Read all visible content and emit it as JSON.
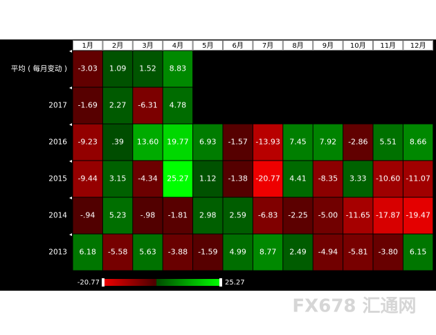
{
  "chart_data": {
    "type": "heatmap",
    "categories": [
      "1月",
      "2月",
      "3月",
      "4月",
      "5月",
      "6月",
      "7月",
      "8月",
      "9月",
      "10月",
      "11月",
      "12月"
    ],
    "series": [
      {
        "name": "平均 ( 每月变动 )",
        "values": [
          -3.03,
          1.09,
          1.52,
          8.83,
          null,
          null,
          null,
          null,
          null,
          null,
          null,
          null
        ],
        "value_labels": [
          "-3.03",
          "1.09",
          "1.52",
          "8.83",
          null,
          null,
          null,
          null,
          null,
          null,
          null,
          null
        ]
      },
      {
        "name": "2017",
        "values": [
          -1.69,
          2.27,
          -6.31,
          4.78,
          null,
          null,
          null,
          null,
          null,
          null,
          null,
          null
        ],
        "value_labels": [
          "-1.69",
          "2.27",
          "-6.31",
          "4.78",
          null,
          null,
          null,
          null,
          null,
          null,
          null,
          null
        ]
      },
      {
        "name": "2016",
        "values": [
          -9.23,
          0.39,
          13.6,
          19.77,
          6.93,
          -1.57,
          -13.93,
          7.45,
          7.92,
          -2.86,
          5.51,
          8.66
        ],
        "value_labels": [
          "-9.23",
          ".39",
          "13.60",
          "19.77",
          "6.93",
          "-1.57",
          "-13.93",
          "7.45",
          "7.92",
          "-2.86",
          "5.51",
          "8.66"
        ]
      },
      {
        "name": "2015",
        "values": [
          -9.44,
          3.15,
          -4.34,
          25.27,
          1.12,
          -1.38,
          -20.77,
          4.41,
          -8.35,
          3.33,
          -10.6,
          -11.07
        ],
        "value_labels": [
          "-9.44",
          "3.15",
          "-4.34",
          "25.27",
          "1.12",
          "-1.38",
          "-20.77",
          "4.41",
          "-8.35",
          "3.33",
          "-10.60",
          "-11.07"
        ]
      },
      {
        "name": "2014",
        "values": [
          -0.94,
          5.23,
          -0.98,
          -1.81,
          2.98,
          2.59,
          -6.83,
          -2.25,
          -5.0,
          -11.65,
          -17.87,
          -19.47
        ],
        "value_labels": [
          "-.94",
          "5.23",
          "-.98",
          "-1.81",
          "2.98",
          "2.59",
          "-6.83",
          "-2.25",
          "-5.00",
          "-11.65",
          "-17.87",
          "-19.47"
        ]
      },
      {
        "name": "2013",
        "values": [
          6.18,
          -5.58,
          5.63,
          -3.88,
          -1.59,
          4.99,
          8.77,
          2.49,
          -4.94,
          -5.81,
          -3.8,
          6.15
        ],
        "value_labels": [
          "6.18",
          "-5.58",
          "5.63",
          "-3.88",
          "-1.59",
          "4.99",
          "8.77",
          "2.49",
          "-4.94",
          "-5.81",
          "-3.80",
          "6.15"
        ]
      }
    ],
    "colorbar": {
      "min": -20.77,
      "max": 25.27
    },
    "colors": {
      "low": "#ee0000",
      "neg_zero": "#4a0000",
      "pos_zero": "#004a00",
      "high": "#00ff00"
    }
  },
  "watermark": "FX678 汇通网"
}
